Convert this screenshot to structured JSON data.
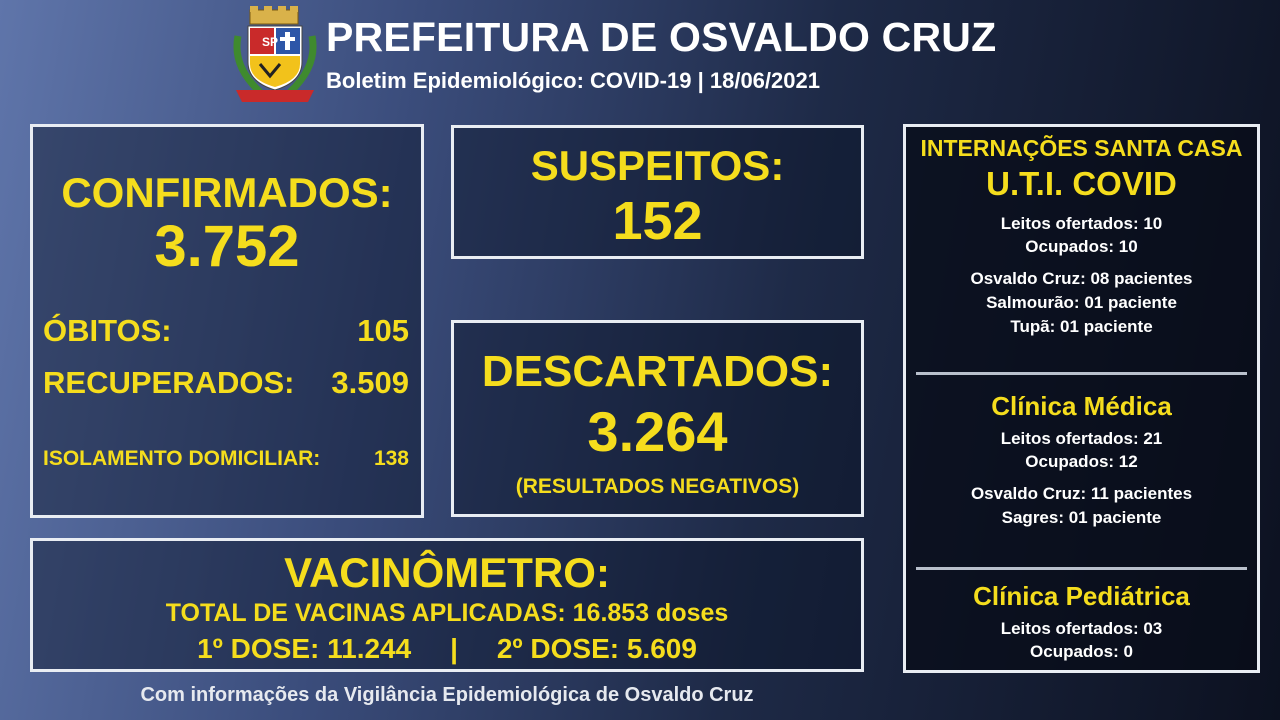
{
  "header": {
    "title": "PREFEITURA DE OSVALDO CRUZ",
    "subtitle": "Boletim Epidemiológico: COVID-19 | 18/06/2021",
    "crest_icon": "city-coat-of-arms-icon",
    "crest_text": "SP"
  },
  "confirmados": {
    "label": "CONFIRMADOS:",
    "value": "3.752",
    "obitos_label": "ÓBITOS:",
    "obitos_value": "105",
    "recuperados_label": "RECUPERADOS:",
    "recuperados_value": "3.509",
    "isolamento_label": "ISOLAMENTO DOMICILIAR:",
    "isolamento_value": "138"
  },
  "suspeitos": {
    "label": "SUSPEITOS:",
    "value": "152"
  },
  "descartados": {
    "label": "DESCARTADOS:",
    "value": "3.264",
    "note": "(RESULTADOS NEGATIVOS)"
  },
  "vacinometro": {
    "label": "VACINÔMETRO:",
    "total": "TOTAL DE VACINAS APLICADAS: 16.853 doses",
    "doses": "1º DOSE: 11.244     |     2º DOSE: 5.609"
  },
  "internacoes": {
    "heading": "INTERNAÇÕES SANTA CASA",
    "uti": {
      "title": "U.T.I. COVID",
      "leitos": "Leitos ofertados: 10",
      "ocupados": "Ocupados: 10",
      "cidades": [
        "Osvaldo Cruz: 08 pacientes",
        "Salmourão: 01 paciente",
        "Tupã: 01 paciente"
      ]
    },
    "clinica_medica": {
      "title": "Clínica Médica",
      "leitos": "Leitos ofertados: 21",
      "ocupados": "Ocupados: 12",
      "cidades": [
        "Osvaldo Cruz: 11 pacientes",
        "Sagres: 01 paciente"
      ]
    },
    "clinica_pediatrica": {
      "title": "Clínica Pediátrica",
      "leitos": "Leitos ofertados: 03",
      "ocupados": "Ocupados: 0"
    }
  },
  "footer": "Com informações da Vigilância Epidemiológica de Osvaldo Cruz",
  "colors": {
    "accent_yellow": "#f5dd1d",
    "border": "#e9edf3",
    "background_start": "#5f75aa",
    "background_end": "#0c1120"
  }
}
